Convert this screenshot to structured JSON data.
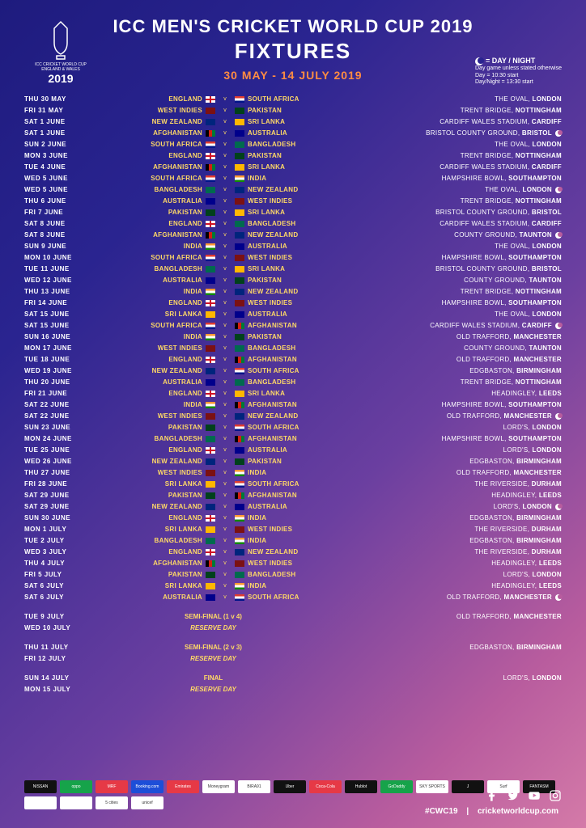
{
  "header": {
    "title": "ICC MEN'S CRICKET WORLD CUP 2019",
    "subtitle": "FIXTURES",
    "dates": "30 MAY - 14 JULY 2019",
    "logo_text1": "ICC CRICKET WORLD CUP",
    "logo_text2": "ENGLAND & WALES",
    "logo_year": "2019",
    "daynight_label": "= DAY / NIGHT",
    "daynight_sub1": "Day game unless stated otherwise",
    "daynight_sub2": "Day = 10:30 start",
    "daynight_sub3": "Day/Night = 13:30 start"
  },
  "fixtures": [
    {
      "date": "THU 30 MAY",
      "t1": "ENGLAND",
      "f1": "eng",
      "t2": "SOUTH AFRICA",
      "f2": "saf",
      "venue": "THE OVAL,",
      "city": "LONDON",
      "dn": false
    },
    {
      "date": "FRI 31 MAY",
      "t1": "WEST INDIES",
      "f1": "wi",
      "t2": "PAKISTAN",
      "f2": "pak",
      "venue": "TRENT BRIDGE,",
      "city": "NOTTINGHAM",
      "dn": false
    },
    {
      "date": "SAT 1 JUNE",
      "t1": "NEW ZEALAND",
      "f1": "nz",
      "t2": "SRI LANKA",
      "f2": "sl",
      "venue": "CARDIFF WALES STADIUM,",
      "city": "CARDIFF",
      "dn": false
    },
    {
      "date": "SAT 1 JUNE",
      "t1": "AFGHANISTAN",
      "f1": "afg",
      "t2": "AUSTRALIA",
      "f2": "aus",
      "venue": "BRISTOL COUNTY GROUND,",
      "city": "BRISTOL",
      "dn": true
    },
    {
      "date": "SUN 2 JUNE",
      "t1": "SOUTH AFRICA",
      "f1": "saf",
      "t2": "BANGLADESH",
      "f2": "ban",
      "venue": "THE OVAL,",
      "city": "LONDON",
      "dn": false
    },
    {
      "date": "MON 3 JUNE",
      "t1": "ENGLAND",
      "f1": "eng",
      "t2": "PAKISTAN",
      "f2": "pak",
      "venue": "TRENT BRIDGE,",
      "city": "NOTTINGHAM",
      "dn": false
    },
    {
      "date": "TUE 4 JUNE",
      "t1": "AFGHANISTAN",
      "f1": "afg",
      "t2": "SRI LANKA",
      "f2": "sl",
      "venue": "CARDIFF WALES STADIUM,",
      "city": "CARDIFF",
      "dn": false
    },
    {
      "date": "WED 5 JUNE",
      "t1": "SOUTH AFRICA",
      "f1": "saf",
      "t2": "INDIA",
      "f2": "ind",
      "venue": "HAMPSHIRE BOWL,",
      "city": "SOUTHAMPTON",
      "dn": false
    },
    {
      "date": "WED 5 JUNE",
      "t1": "BANGLADESH",
      "f1": "ban",
      "t2": "NEW ZEALAND",
      "f2": "nz",
      "venue": "THE OVAL,",
      "city": "LONDON",
      "dn": true
    },
    {
      "date": "THU 6 JUNE",
      "t1": "AUSTRALIA",
      "f1": "aus",
      "t2": "WEST INDIES",
      "f2": "wi",
      "venue": "TRENT BRIDGE,",
      "city": "NOTTINGHAM",
      "dn": false
    },
    {
      "date": "FRI 7 JUNE",
      "t1": "PAKISTAN",
      "f1": "pak",
      "t2": "SRI LANKA",
      "f2": "sl",
      "venue": "BRISTOL COUNTY GROUND,",
      "city": "BRISTOL",
      "dn": false
    },
    {
      "date": "SAT 8 JUNE",
      "t1": "ENGLAND",
      "f1": "eng",
      "t2": "BANGLADESH",
      "f2": "ban",
      "venue": "CARDIFF WALES STADIUM,",
      "city": "CARDIFF",
      "dn": false
    },
    {
      "date": "SAT 8 JUNE",
      "t1": "AFGHANISTAN",
      "f1": "afg",
      "t2": "NEW ZEALAND",
      "f2": "nz",
      "venue": "COUNTY GROUND,",
      "city": "TAUNTON",
      "dn": true
    },
    {
      "date": "SUN 9 JUNE",
      "t1": "INDIA",
      "f1": "ind",
      "t2": "AUSTRALIA",
      "f2": "aus",
      "venue": "THE OVAL,",
      "city": "LONDON",
      "dn": false
    },
    {
      "date": "MON 10 JUNE",
      "t1": "SOUTH AFRICA",
      "f1": "saf",
      "t2": "WEST INDIES",
      "f2": "wi",
      "venue": "HAMPSHIRE BOWL,",
      "city": "SOUTHAMPTON",
      "dn": false
    },
    {
      "date": "TUE 11 JUNE",
      "t1": "BANGLADESH",
      "f1": "ban",
      "t2": "SRI LANKA",
      "f2": "sl",
      "venue": "BRISTOL COUNTY GROUND,",
      "city": "BRISTOL",
      "dn": false
    },
    {
      "date": "WED 12 JUNE",
      "t1": "AUSTRALIA",
      "f1": "aus",
      "t2": "PAKISTAN",
      "f2": "pak",
      "venue": "COUNTY GROUND,",
      "city": "TAUNTON",
      "dn": false
    },
    {
      "date": "THU 13 JUNE",
      "t1": "INDIA",
      "f1": "ind",
      "t2": "NEW ZEALAND",
      "f2": "nz",
      "venue": "TRENT BRIDGE,",
      "city": "NOTTINGHAM",
      "dn": false
    },
    {
      "date": "FRI 14 JUNE",
      "t1": "ENGLAND",
      "f1": "eng",
      "t2": "WEST INDIES",
      "f2": "wi",
      "venue": "HAMPSHIRE BOWL,",
      "city": "SOUTHAMPTON",
      "dn": false
    },
    {
      "date": "SAT 15 JUNE",
      "t1": "SRI LANKA",
      "f1": "sl",
      "t2": "AUSTRALIA",
      "f2": "aus",
      "venue": "THE OVAL,",
      "city": "LONDON",
      "dn": false
    },
    {
      "date": "SAT 15 JUNE",
      "t1": "SOUTH AFRICA",
      "f1": "saf",
      "t2": "AFGHANISTAN",
      "f2": "afg",
      "venue": "CARDIFF WALES STADIUM,",
      "city": "CARDIFF",
      "dn": true
    },
    {
      "date": "SUN 16 JUNE",
      "t1": "INDIA",
      "f1": "ind",
      "t2": "PAKISTAN",
      "f2": "pak",
      "venue": "OLD TRAFFORD,",
      "city": "MANCHESTER",
      "dn": false
    },
    {
      "date": "MON 17 JUNE",
      "t1": "WEST INDIES",
      "f1": "wi",
      "t2": "BANGLADESH",
      "f2": "ban",
      "venue": "COUNTY GROUND,",
      "city": "TAUNTON",
      "dn": false
    },
    {
      "date": "TUE 18 JUNE",
      "t1": "ENGLAND",
      "f1": "eng",
      "t2": "AFGHANISTAN",
      "f2": "afg",
      "venue": "OLD TRAFFORD,",
      "city": "MANCHESTER",
      "dn": false
    },
    {
      "date": "WED 19 JUNE",
      "t1": "NEW ZEALAND",
      "f1": "nz",
      "t2": "SOUTH AFRICA",
      "f2": "saf",
      "venue": "EDGBASTON,",
      "city": "BIRMINGHAM",
      "dn": false
    },
    {
      "date": "THU 20 JUNE",
      "t1": "AUSTRALIA",
      "f1": "aus",
      "t2": "BANGLADESH",
      "f2": "ban",
      "venue": "TRENT BRIDGE,",
      "city": "NOTTINGHAM",
      "dn": false
    },
    {
      "date": "FRI 21 JUNE",
      "t1": "ENGLAND",
      "f1": "eng",
      "t2": "SRI LANKA",
      "f2": "sl",
      "venue": "HEADINGLEY,",
      "city": "LEEDS",
      "dn": false
    },
    {
      "date": "SAT 22 JUNE",
      "t1": "INDIA",
      "f1": "ind",
      "t2": "AFGHANISTAN",
      "f2": "afg",
      "venue": "HAMPSHIRE BOWL,",
      "city": "SOUTHAMPTON",
      "dn": false
    },
    {
      "date": "SAT 22 JUNE",
      "t1": "WEST INDIES",
      "f1": "wi",
      "t2": "NEW ZEALAND",
      "f2": "nz",
      "venue": "OLD TRAFFORD,",
      "city": "MANCHESTER",
      "dn": true
    },
    {
      "date": "SUN 23 JUNE",
      "t1": "PAKISTAN",
      "f1": "pak",
      "t2": "SOUTH AFRICA",
      "f2": "saf",
      "venue": "LORD'S,",
      "city": "LONDON",
      "dn": false
    },
    {
      "date": "MON 24 JUNE",
      "t1": "BANGLADESH",
      "f1": "ban",
      "t2": "AFGHANISTAN",
      "f2": "afg",
      "venue": "HAMPSHIRE BOWL,",
      "city": "SOUTHAMPTON",
      "dn": false
    },
    {
      "date": "TUE 25 JUNE",
      "t1": "ENGLAND",
      "f1": "eng",
      "t2": "AUSTRALIA",
      "f2": "aus",
      "venue": "LORD'S,",
      "city": "LONDON",
      "dn": false
    },
    {
      "date": "WED 26 JUNE",
      "t1": "NEW ZEALAND",
      "f1": "nz",
      "t2": "PAKISTAN",
      "f2": "pak",
      "venue": "EDGBASTON,",
      "city": "BIRMINGHAM",
      "dn": false
    },
    {
      "date": "THU 27 JUNE",
      "t1": "WEST INDIES",
      "f1": "wi",
      "t2": "INDIA",
      "f2": "ind",
      "venue": "OLD TRAFFORD,",
      "city": "MANCHESTER",
      "dn": false
    },
    {
      "date": "FRI 28 JUNE",
      "t1": "SRI LANKA",
      "f1": "sl",
      "t2": "SOUTH AFRICA",
      "f2": "saf",
      "venue": "THE RIVERSIDE,",
      "city": "DURHAM",
      "dn": false
    },
    {
      "date": "SAT 29 JUNE",
      "t1": "PAKISTAN",
      "f1": "pak",
      "t2": "AFGHANISTAN",
      "f2": "afg",
      "venue": "HEADINGLEY,",
      "city": "LEEDS",
      "dn": false
    },
    {
      "date": "SAT 29 JUNE",
      "t1": "NEW ZEALAND",
      "f1": "nz",
      "t2": "AUSTRALIA",
      "f2": "aus",
      "venue": "LORD'S,",
      "city": "LONDON",
      "dn": true
    },
    {
      "date": "SUN 30 JUNE",
      "t1": "ENGLAND",
      "f1": "eng",
      "t2": "INDIA",
      "f2": "ind",
      "venue": "EDGBASTON,",
      "city": "BIRMINGHAM",
      "dn": false
    },
    {
      "date": "MON 1 JULY",
      "t1": "SRI LANKA",
      "f1": "sl",
      "t2": "WEST INDIES",
      "f2": "wi",
      "venue": "THE RIVERSIDE,",
      "city": "DURHAM",
      "dn": false
    },
    {
      "date": "TUE 2 JULY",
      "t1": "BANGLADESH",
      "f1": "ban",
      "t2": "INDIA",
      "f2": "ind",
      "venue": "EDGBASTON,",
      "city": "BIRMINGHAM",
      "dn": false
    },
    {
      "date": "WED 3 JULY",
      "t1": "ENGLAND",
      "f1": "eng",
      "t2": "NEW ZEALAND",
      "f2": "nz",
      "venue": "THE RIVERSIDE,",
      "city": "DURHAM",
      "dn": false
    },
    {
      "date": "THU 4 JULY",
      "t1": "AFGHANISTAN",
      "f1": "afg",
      "t2": "WEST INDIES",
      "f2": "wi",
      "venue": "HEADINGLEY,",
      "city": "LEEDS",
      "dn": false
    },
    {
      "date": "FRI 5 JULY",
      "t1": "PAKISTAN",
      "f1": "pak",
      "t2": "BANGLADESH",
      "f2": "ban",
      "venue": "LORD'S,",
      "city": "LONDON",
      "dn": false
    },
    {
      "date": "SAT 6 JULY",
      "t1": "SRI LANKA",
      "f1": "sl",
      "t2": "INDIA",
      "f2": "ind",
      "venue": "HEADINGLEY,",
      "city": "LEEDS",
      "dn": false
    },
    {
      "date": "SAT 6 JULY",
      "t1": "AUSTRALIA",
      "f1": "aus",
      "t2": "SOUTH AFRICA",
      "f2": "saf",
      "venue": "OLD TRAFFORD,",
      "city": "MANCHESTER",
      "dn": true
    }
  ],
  "specials": [
    {
      "date": "TUE 9 JULY",
      "label": "SEMI-FINAL (1 v 4)",
      "venue": "OLD TRAFFORD,",
      "city": "MANCHESTER"
    },
    {
      "date": "WED 10 JULY",
      "label": "RESERVE DAY",
      "italic": true
    },
    {
      "gap": true
    },
    {
      "date": "THU 11 JULY",
      "label": "SEMI-FINAL (2 v 3)",
      "venue": "EDGBASTON,",
      "city": "BIRMINGHAM"
    },
    {
      "date": "FRI 12 JULY",
      "label": "RESERVE DAY",
      "italic": true
    },
    {
      "gap": true
    },
    {
      "date": "SUN 14 JULY",
      "label": "FINAL",
      "venue": "LORD'S,",
      "city": "LONDON"
    },
    {
      "date": "MON 15 JULY",
      "label": "RESERVE DAY",
      "italic": true
    }
  ],
  "sponsors": [
    {
      "name": "NISSAN",
      "cls": "black"
    },
    {
      "name": "oppo",
      "cls": "green"
    },
    {
      "name": "MRF",
      "cls": "red"
    },
    {
      "name": "Booking.com",
      "cls": "blue"
    },
    {
      "name": "Emirates",
      "cls": "red"
    },
    {
      "name": "Moneygram",
      "cls": "white"
    },
    {
      "name": "BIRA91",
      "cls": "white"
    },
    {
      "name": "Uber",
      "cls": "black"
    },
    {
      "name": "Coca-Cola",
      "cls": "red"
    },
    {
      "name": "Hublot",
      "cls": "black"
    },
    {
      "name": "GoDaddy",
      "cls": "green"
    },
    {
      "name": "SKY SPORTS",
      "cls": "white"
    },
    {
      "name": "J",
      "cls": "black"
    },
    {
      "name": "Surf",
      "cls": "white"
    },
    {
      "name": "FANTASM",
      "cls": "black"
    },
    {
      "name": "",
      "cls": "white"
    },
    {
      "name": "",
      "cls": "white"
    },
    {
      "name": "5 cities",
      "cls": "white"
    },
    {
      "name": "unicef",
      "cls": "white"
    }
  ],
  "footer": {
    "hashtag": "#CWC19",
    "sep": "|",
    "url": "cricketworldcup.com"
  }
}
